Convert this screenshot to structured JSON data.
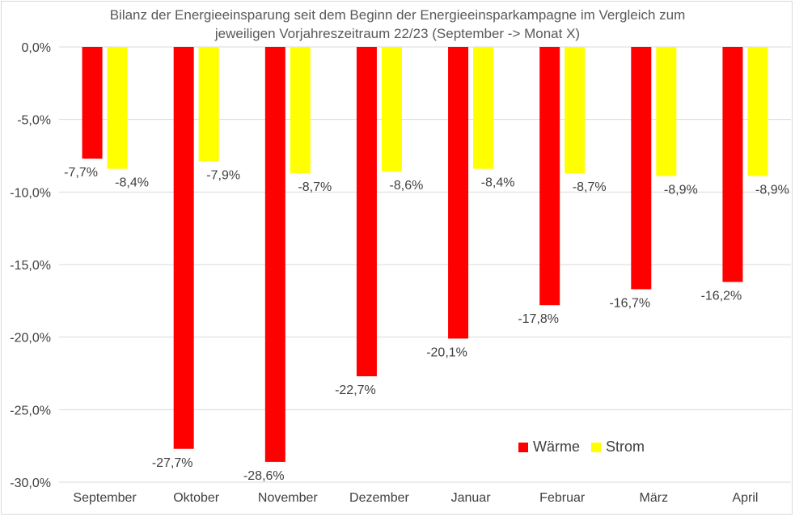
{
  "chart_data": {
    "type": "bar",
    "title": "Bilanz der Energieeinsparung seit dem Beginn der Energieeinsparkampagne im Vergleich zum jeweiligen Vorjahreszeitraum 22/23 (September -> Monat X)",
    "title_lines": [
      "Bilanz der Energieeinsparung seit dem Beginn der Energieeinsparkampagne im Vergleich zum",
      "jeweiligen Vorjahreszeitraum 22/23 (September -> Monat X)"
    ],
    "xlabel": "",
    "ylabel": "",
    "ylim": [
      -30,
      0
    ],
    "yticks": [
      0,
      -5,
      -10,
      -15,
      -20,
      -25,
      -30
    ],
    "ytick_labels": [
      "0,0%",
      "-5,0%",
      "-10,0%",
      "-15,0%",
      "-20,0%",
      "-25,0%",
      "-30,0%"
    ],
    "grid": true,
    "legend_position": "bottom-right",
    "categories": [
      "September",
      "Oktober",
      "November",
      "Dezember",
      "Januar",
      "Februar",
      "März",
      "April"
    ],
    "series": [
      {
        "name": "Wärme",
        "color": "#ff0000",
        "values": [
          -7.7,
          -27.7,
          -28.6,
          -22.7,
          -20.1,
          -17.8,
          -16.7,
          -16.2
        ],
        "labels": [
          "-7,7%",
          "-27,7%",
          "-28,6%",
          "-22,7%",
          "-20,1%",
          "-17,8%",
          "-16,7%",
          "-16,2%"
        ]
      },
      {
        "name": "Strom",
        "color": "#ffff00",
        "values": [
          -8.4,
          -7.9,
          -8.7,
          -8.6,
          -8.4,
          -8.7,
          -8.9,
          -8.9
        ],
        "labels": [
          "-8,4%",
          "-7,9%",
          "-8,7%",
          "-8,6%",
          "-8,4%",
          "-8,7%",
          "-8,9%",
          "-8,9%"
        ]
      }
    ]
  }
}
